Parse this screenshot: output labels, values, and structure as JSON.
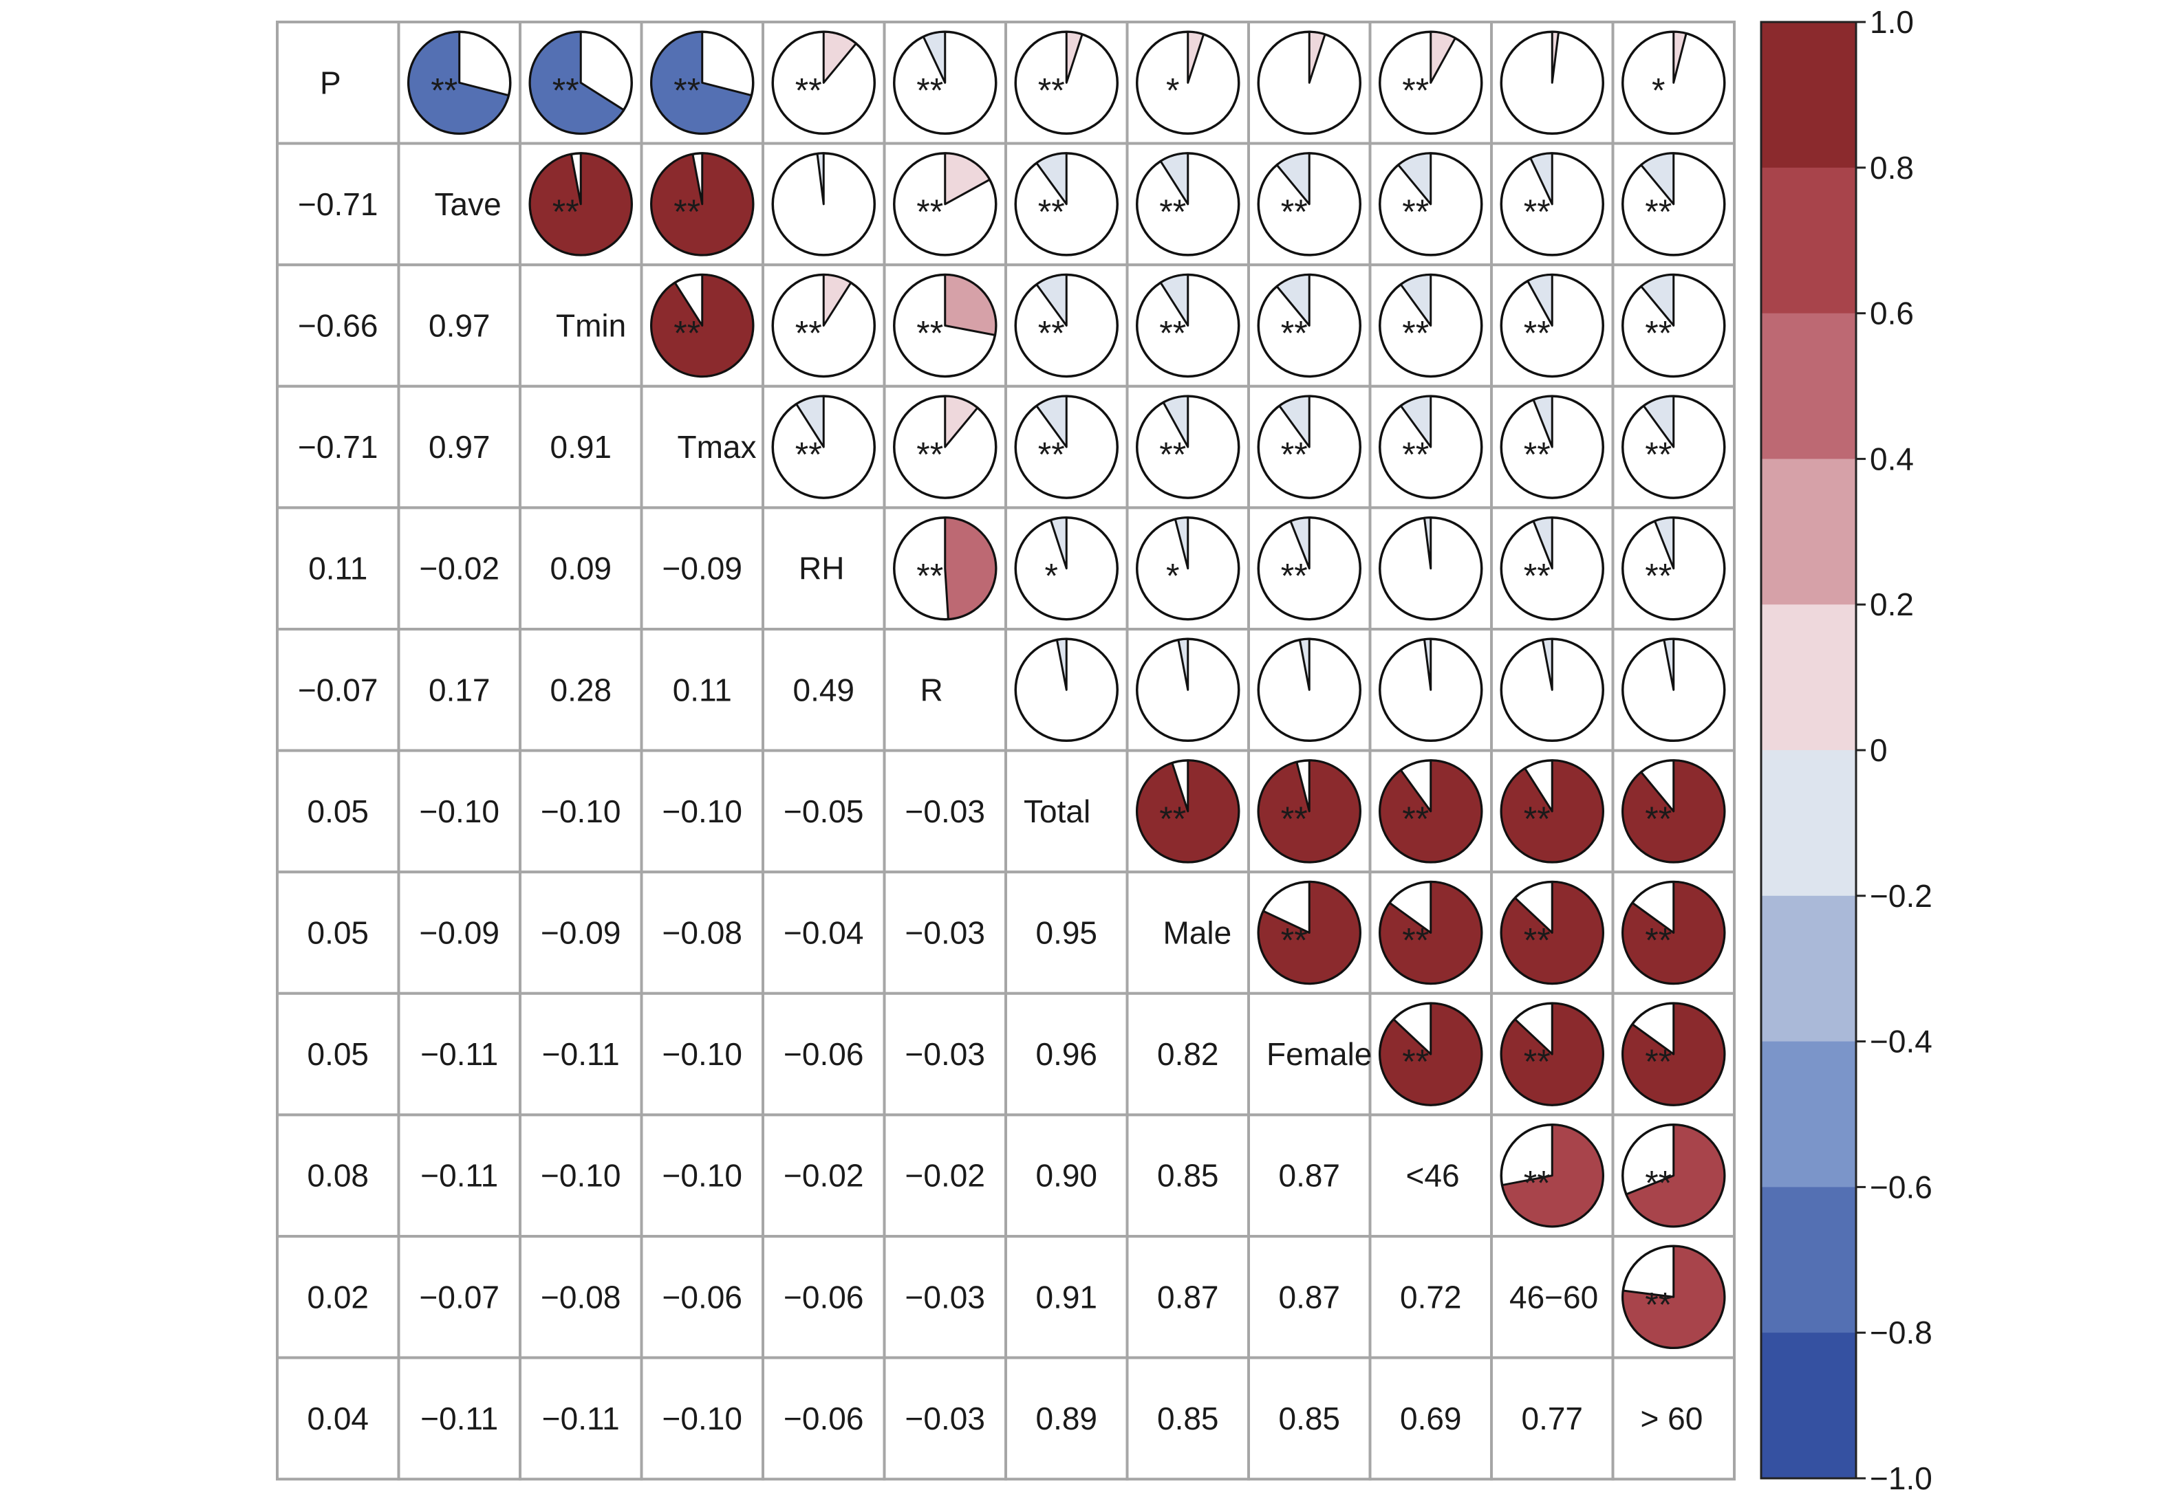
{
  "chart_data": {
    "type": "heatmap",
    "variables": [
      "P",
      "Tave",
      "Tmin",
      "Tmax",
      "RH",
      "R",
      "Total",
      "Male",
      "Female",
      "<46",
      "46−60",
      "> 60"
    ],
    "matrix": [
      [
        1.0,
        -0.71,
        -0.66,
        -0.71,
        0.11,
        -0.07,
        0.05,
        0.05,
        0.05,
        0.08,
        0.02,
        0.04
      ],
      [
        -0.71,
        1.0,
        0.97,
        0.97,
        -0.02,
        0.17,
        -0.1,
        -0.09,
        -0.11,
        -0.11,
        -0.07,
        -0.11
      ],
      [
        -0.66,
        0.97,
        1.0,
        0.91,
        0.09,
        0.28,
        -0.1,
        -0.09,
        -0.11,
        -0.1,
        -0.08,
        -0.11
      ],
      [
        -0.71,
        0.97,
        0.91,
        1.0,
        -0.09,
        0.11,
        -0.1,
        -0.08,
        -0.1,
        -0.1,
        -0.06,
        -0.1
      ],
      [
        0.11,
        -0.02,
        0.09,
        -0.09,
        1.0,
        0.49,
        -0.05,
        -0.04,
        -0.06,
        -0.02,
        -0.06,
        -0.06
      ],
      [
        -0.07,
        0.17,
        0.28,
        0.11,
        0.49,
        1.0,
        -0.03,
        -0.03,
        -0.03,
        -0.02,
        -0.03,
        -0.03
      ],
      [
        0.05,
        -0.1,
        -0.1,
        -0.1,
        -0.05,
        -0.03,
        1.0,
        0.95,
        0.96,
        0.9,
        0.91,
        0.89
      ],
      [
        0.05,
        -0.09,
        -0.09,
        -0.08,
        -0.04,
        -0.03,
        0.95,
        1.0,
        0.82,
        0.85,
        0.87,
        0.85
      ],
      [
        0.05,
        -0.11,
        -0.11,
        -0.1,
        -0.06,
        -0.03,
        0.96,
        0.82,
        1.0,
        0.87,
        0.87,
        0.85
      ],
      [
        0.08,
        -0.11,
        -0.1,
        -0.1,
        -0.02,
        -0.02,
        0.9,
        0.85,
        0.87,
        1.0,
        0.72,
        0.69
      ],
      [
        0.02,
        -0.07,
        -0.08,
        -0.06,
        -0.06,
        -0.03,
        0.91,
        0.87,
        0.87,
        0.72,
        1.0,
        0.77
      ],
      [
        0.04,
        -0.11,
        -0.11,
        -0.1,
        -0.06,
        -0.03,
        0.89,
        0.85,
        0.85,
        0.69,
        0.77,
        1.0
      ]
    ],
    "lower_labels": [
      [],
      [
        "−0.71"
      ],
      [
        "−0.66",
        "0.97"
      ],
      [
        "−0.71",
        "0.97",
        "0.91"
      ],
      [
        "0.11",
        "−0.02",
        "0.09",
        "−0.09"
      ],
      [
        "−0.07",
        "0.17",
        "0.28",
        "0.11",
        "0.49"
      ],
      [
        "0.05",
        "−0.10",
        "−0.10",
        "−0.10",
        "−0.05",
        "−0.03"
      ],
      [
        "0.05",
        "−0.09",
        "−0.09",
        "−0.08",
        "−0.04",
        "−0.03",
        "0.95"
      ],
      [
        "0.05",
        "−0.11",
        "−0.11",
        "−0.10",
        "−0.06",
        "−0.03",
        "0.96",
        "0.82"
      ],
      [
        "0.08",
        "−0.11",
        "−0.10",
        "−0.10",
        "−0.02",
        "−0.02",
        "0.90",
        "0.85",
        "0.87"
      ],
      [
        "0.02",
        "−0.07",
        "−0.08",
        "−0.06",
        "−0.06",
        "−0.03",
        "0.91",
        "0.87",
        "0.87",
        "0.72"
      ],
      [
        "0.04",
        "−0.11",
        "−0.11",
        "−0.10",
        "−0.06",
        "−0.03",
        "0.89",
        "0.85",
        "0.85",
        "0.69",
        "0.77"
      ]
    ],
    "significance": [
      [
        "",
        "**",
        "**",
        "**",
        "**",
        "**",
        "**",
        "*",
        "",
        "**",
        "",
        "*"
      ],
      [
        "",
        "",
        "**",
        "**",
        "",
        "**",
        "**",
        "**",
        "**",
        "**",
        "**",
        "**"
      ],
      [
        "",
        "",
        "",
        "**",
        "**",
        "**",
        "**",
        "**",
        "**",
        "**",
        "**",
        "**"
      ],
      [
        "",
        "",
        "",
        "",
        "**",
        "**",
        "**",
        "**",
        "**",
        "**",
        "**",
        "**"
      ],
      [
        "",
        "",
        "",
        "",
        "",
        "**",
        "*",
        "*",
        "**",
        "",
        "**",
        "**"
      ],
      [
        "",
        "",
        "",
        "",
        "",
        "",
        "",
        "",
        "",
        "",
        "",
        ""
      ],
      [
        "",
        "",
        "",
        "",
        "",
        "",
        "",
        "**",
        "**",
        "**",
        "**",
        "**"
      ],
      [
        "",
        "",
        "",
        "",
        "",
        "",
        "",
        "",
        "**",
        "**",
        "**",
        "**"
      ],
      [
        "",
        "",
        "",
        "",
        "",
        "",
        "",
        "",
        "",
        "**",
        "**",
        "**"
      ],
      [
        "",
        "",
        "",
        "",
        "",
        "",
        "",
        "",
        "",
        "",
        "**",
        "**"
      ],
      [
        "",
        "",
        "",
        "",
        "",
        "",
        "",
        "",
        "",
        "",
        "",
        "**"
      ],
      [
        "",
        "",
        "",
        "",
        "",
        "",
        "",
        "",
        "",
        "",
        "",
        ""
      ]
    ],
    "colorbar": {
      "range": [
        -1.0,
        1.0
      ],
      "ticks": [
        1.0,
        0.8,
        0.6,
        0.4,
        0.2,
        0,
        -0.2,
        -0.4,
        -0.6,
        -0.8,
        -1.0
      ],
      "tick_labels": [
        "1.0",
        "0.8",
        "0.6",
        "0.4",
        "0.2",
        "0",
        "−0.2",
        "−0.4",
        "−0.6",
        "−0.8",
        "−1.0"
      ],
      "colors": [
        "#8b2a2d",
        "#a8444b",
        "#bd6973",
        "#d6a1a8",
        "#eed8dc",
        "#dde4ee",
        "#aab9d8",
        "#7b95c9",
        "#5470b3",
        "#3551a1"
      ]
    },
    "upper_triangle": "pie",
    "lower_triangle": "number",
    "grid": true,
    "legend": "right"
  }
}
